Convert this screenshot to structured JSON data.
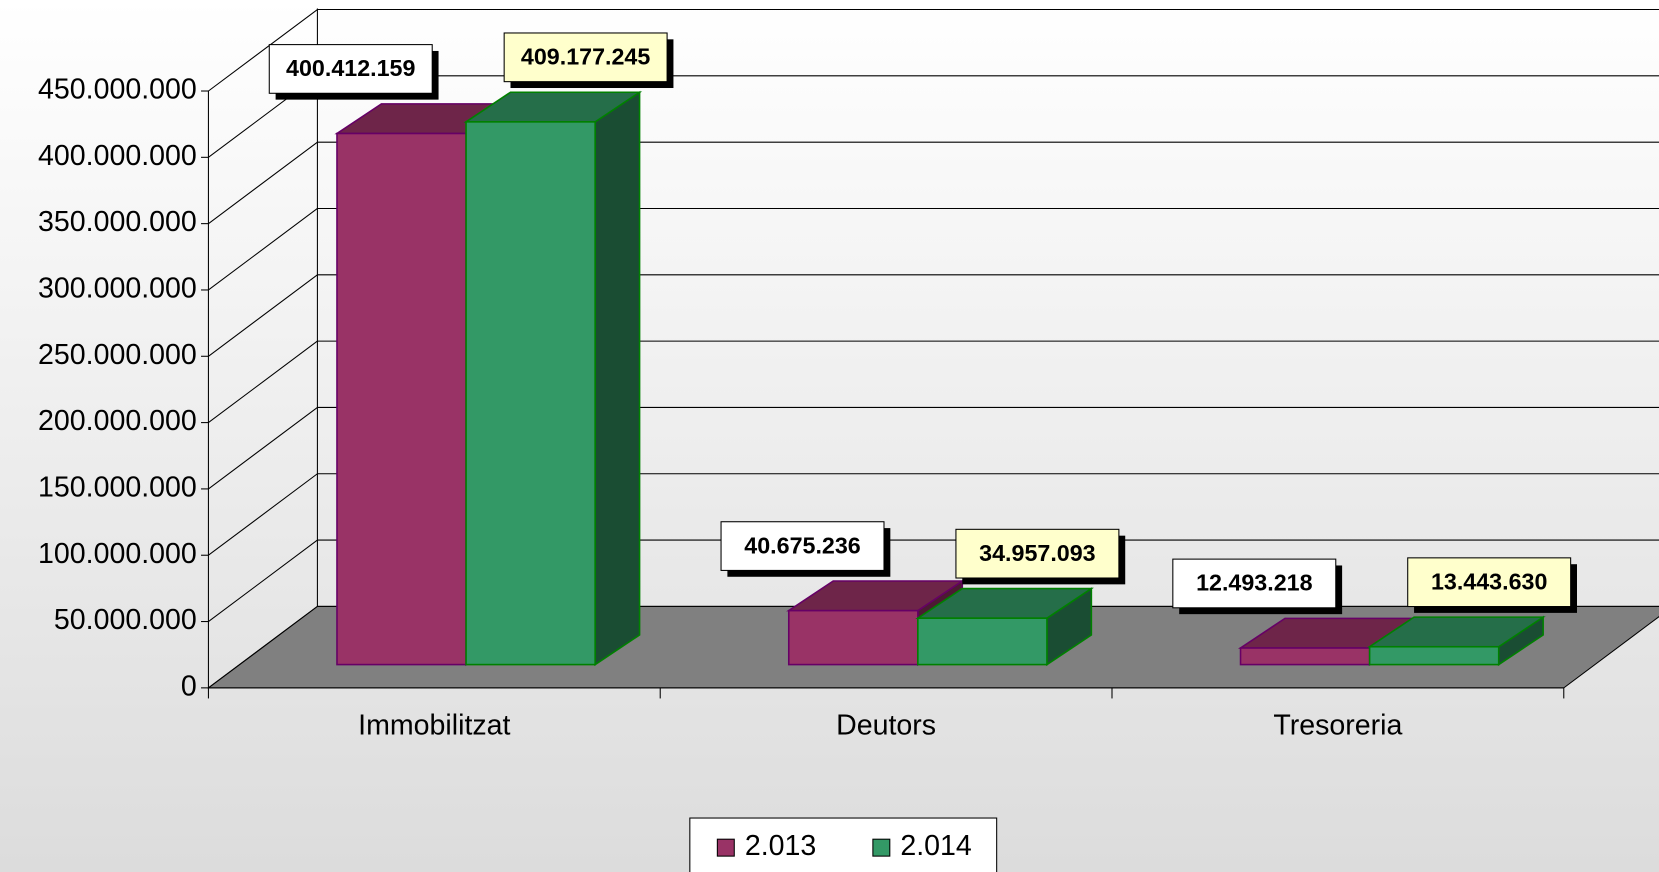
{
  "chart_data": {
    "type": "bar3d",
    "categories": [
      "Immobilitzat",
      "Deutors",
      "Tresoreria"
    ],
    "series": [
      {
        "name": "2.013",
        "color": "#993366",
        "values": [
          400412159,
          40675236,
          12493218
        ],
        "value_labels": [
          "400.412.159",
          "40.675.236",
          "12.493.218"
        ]
      },
      {
        "name": "2.014",
        "color": "#339966",
        "values": [
          409177245,
          34957093,
          13443630
        ],
        "value_labels": [
          "409.177.245",
          "34.957.093",
          "13.443.630"
        ]
      }
    ],
    "ylim": [
      0,
      450000000
    ],
    "yticks": [
      0,
      {
        "value": 50000000,
        "label": "50.000.000"
      },
      {
        "value": 100000000,
        "label": "100.000.000"
      },
      {
        "value": 150000000,
        "label": "150.000.000"
      },
      {
        "value": 200000000,
        "label": "200.000.000"
      },
      {
        "value": 250000000,
        "label": "250.000.000"
      },
      {
        "value": 300000000,
        "label": "300.000.000"
      },
      {
        "value": 350000000,
        "label": "350.000.000"
      },
      {
        "value": 400000000,
        "label": "400.000.000"
      },
      {
        "value": 450000000,
        "label": "450.000.000"
      }
    ],
    "grid": true,
    "legend": "bottom"
  }
}
